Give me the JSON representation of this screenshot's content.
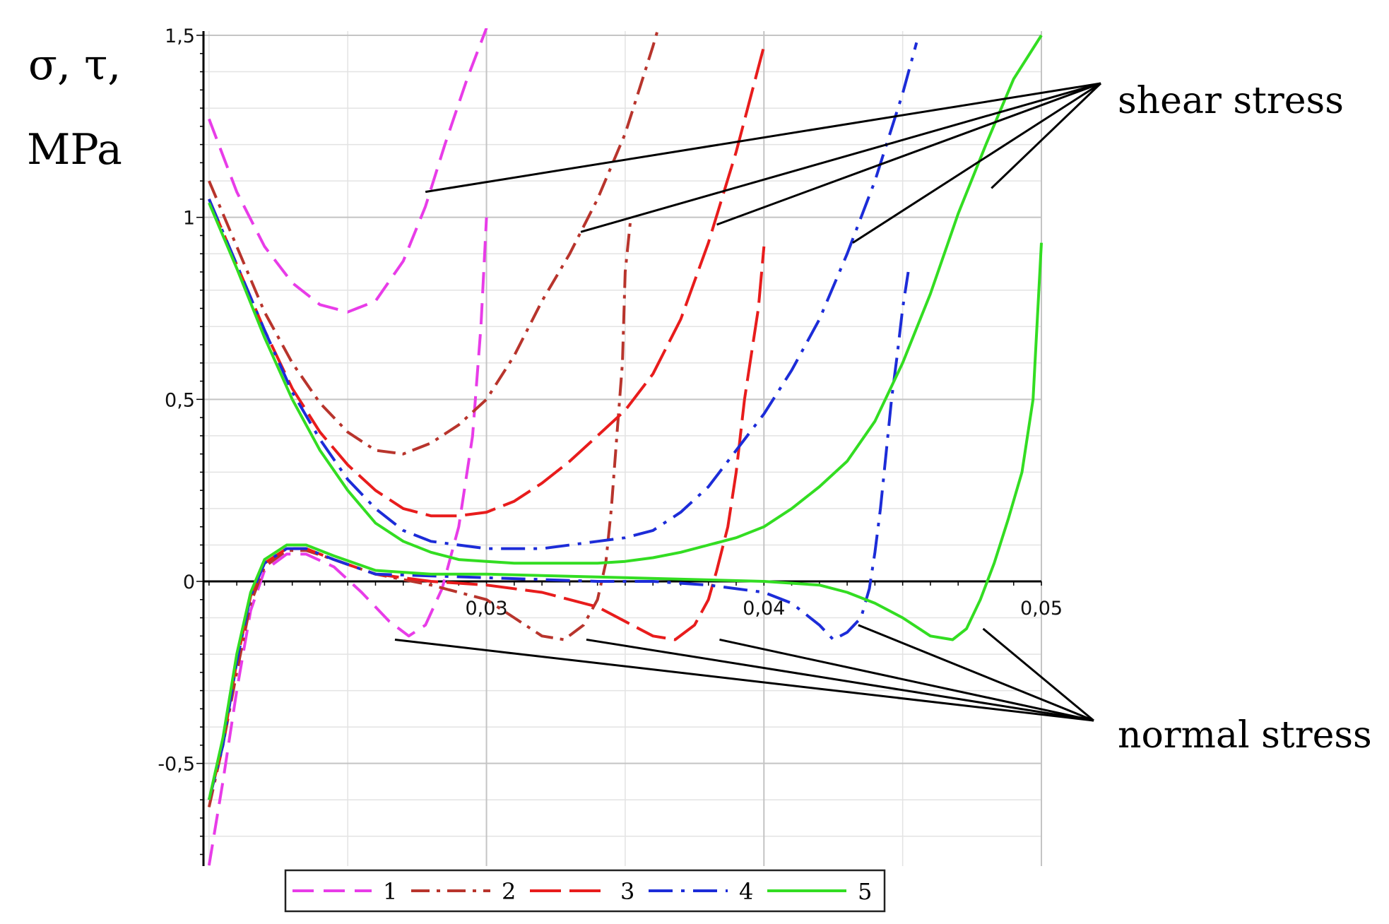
{
  "chart_data": {
    "type": "line",
    "title": "",
    "xlabel": "",
    "ylabel_line1": "σ,  τ,",
    "ylabel_line2": "MPa",
    "xlim": [
      0.0198,
      0.05
    ],
    "ylim": [
      -0.77,
      1.5
    ],
    "x_ticks": [
      0.03,
      0.04,
      0.05
    ],
    "x_tick_labels": [
      "0,03",
      "0,04",
      "0,05"
    ],
    "y_ticks": [
      -0.5,
      0,
      0.5,
      1,
      1.5
    ],
    "y_tick_labels": [
      "-0,5",
      "0",
      "0,5",
      "1",
      "1,5"
    ],
    "grid": true,
    "legend_position": "bottom",
    "annotations": {
      "shear": "shear stress",
      "normal": "normal stress"
    },
    "series": [
      {
        "name": "1",
        "color": "#e83ce8",
        "dash": "dashed",
        "shear": [
          [
            0.02,
            1.27
          ],
          [
            0.021,
            1.07
          ],
          [
            0.022,
            0.92
          ],
          [
            0.023,
            0.82
          ],
          [
            0.024,
            0.76
          ],
          [
            0.025,
            0.74
          ],
          [
            0.026,
            0.77
          ],
          [
            0.027,
            0.88
          ],
          [
            0.0278,
            1.03
          ],
          [
            0.0285,
            1.2
          ],
          [
            0.0293,
            1.38
          ],
          [
            0.03,
            1.52
          ]
        ],
        "normal": [
          [
            0.02,
            -0.78
          ],
          [
            0.0205,
            -0.55
          ],
          [
            0.021,
            -0.3
          ],
          [
            0.0215,
            -0.08
          ],
          [
            0.022,
            0.03
          ],
          [
            0.0228,
            0.075
          ],
          [
            0.0235,
            0.075
          ],
          [
            0.0245,
            0.04
          ],
          [
            0.0255,
            -0.03
          ],
          [
            0.0265,
            -0.11
          ],
          [
            0.0272,
            -0.15
          ],
          [
            0.0278,
            -0.12
          ],
          [
            0.0284,
            -0.02
          ],
          [
            0.029,
            0.15
          ],
          [
            0.0295,
            0.4
          ],
          [
            0.0298,
            0.7
          ],
          [
            0.03,
            1.0
          ]
        ]
      },
      {
        "name": "2",
        "color": "#b8342c",
        "dash": "dashdot",
        "shear": [
          [
            0.02,
            1.1
          ],
          [
            0.021,
            0.92
          ],
          [
            0.022,
            0.74
          ],
          [
            0.023,
            0.6
          ],
          [
            0.024,
            0.49
          ],
          [
            0.025,
            0.41
          ],
          [
            0.026,
            0.36
          ],
          [
            0.027,
            0.35
          ],
          [
            0.028,
            0.38
          ],
          [
            0.029,
            0.43
          ],
          [
            0.03,
            0.5
          ],
          [
            0.031,
            0.62
          ],
          [
            0.032,
            0.77
          ],
          [
            0.033,
            0.9
          ],
          [
            0.034,
            1.05
          ],
          [
            0.035,
            1.23
          ],
          [
            0.0355,
            1.35
          ],
          [
            0.036,
            1.47
          ],
          [
            0.0365,
            1.6
          ]
        ],
        "normal": [
          [
            0.02,
            -0.62
          ],
          [
            0.0205,
            -0.45
          ],
          [
            0.021,
            -0.25
          ],
          [
            0.0215,
            -0.06
          ],
          [
            0.022,
            0.04
          ],
          [
            0.0228,
            0.085
          ],
          [
            0.0235,
            0.085
          ],
          [
            0.0245,
            0.06
          ],
          [
            0.026,
            0.02
          ],
          [
            0.028,
            -0.01
          ],
          [
            0.03,
            -0.05
          ],
          [
            0.031,
            -0.1
          ],
          [
            0.032,
            -0.15
          ],
          [
            0.0328,
            -0.16
          ],
          [
            0.0335,
            -0.12
          ],
          [
            0.034,
            -0.05
          ],
          [
            0.0343,
            0.05
          ],
          [
            0.0345,
            0.2
          ],
          [
            0.0347,
            0.4
          ],
          [
            0.0349,
            0.6
          ],
          [
            0.035,
            0.85
          ],
          [
            0.0352,
            1.0
          ]
        ]
      },
      {
        "name": "3",
        "color": "#e81c1c",
        "dash": "longdash",
        "shear": [
          [
            0.02,
            1.05
          ],
          [
            0.021,
            0.87
          ],
          [
            0.022,
            0.69
          ],
          [
            0.023,
            0.53
          ],
          [
            0.024,
            0.41
          ],
          [
            0.025,
            0.32
          ],
          [
            0.026,
            0.25
          ],
          [
            0.027,
            0.2
          ],
          [
            0.028,
            0.18
          ],
          [
            0.029,
            0.18
          ],
          [
            0.03,
            0.19
          ],
          [
            0.031,
            0.22
          ],
          [
            0.032,
            0.27
          ],
          [
            0.033,
            0.33
          ],
          [
            0.034,
            0.4
          ],
          [
            0.035,
            0.47
          ],
          [
            0.036,
            0.57
          ],
          [
            0.037,
            0.72
          ],
          [
            0.038,
            0.93
          ],
          [
            0.039,
            1.18
          ],
          [
            0.04,
            1.47
          ]
        ],
        "normal": [
          [
            0.02,
            -0.6
          ],
          [
            0.0205,
            -0.45
          ],
          [
            0.021,
            -0.22
          ],
          [
            0.0215,
            -0.04
          ],
          [
            0.022,
            0.05
          ],
          [
            0.0228,
            0.09
          ],
          [
            0.0235,
            0.09
          ],
          [
            0.0245,
            0.06
          ],
          [
            0.026,
            0.02
          ],
          [
            0.028,
            0.0
          ],
          [
            0.03,
            -0.01
          ],
          [
            0.032,
            -0.03
          ],
          [
            0.034,
            -0.07
          ],
          [
            0.035,
            -0.11
          ],
          [
            0.036,
            -0.15
          ],
          [
            0.0368,
            -0.16
          ],
          [
            0.0375,
            -0.12
          ],
          [
            0.038,
            -0.05
          ],
          [
            0.0383,
            0.03
          ],
          [
            0.0387,
            0.15
          ],
          [
            0.039,
            0.3
          ],
          [
            0.0393,
            0.5
          ],
          [
            0.0395,
            0.6
          ],
          [
            0.0398,
            0.75
          ],
          [
            0.04,
            0.92
          ]
        ]
      },
      {
        "name": "4",
        "color": "#1c2cd8",
        "dash": "dashdot-long",
        "shear": [
          [
            0.02,
            1.05
          ],
          [
            0.021,
            0.87
          ],
          [
            0.022,
            0.69
          ],
          [
            0.023,
            0.52
          ],
          [
            0.024,
            0.39
          ],
          [
            0.025,
            0.28
          ],
          [
            0.026,
            0.2
          ],
          [
            0.027,
            0.14
          ],
          [
            0.028,
            0.11
          ],
          [
            0.029,
            0.1
          ],
          [
            0.03,
            0.09
          ],
          [
            0.031,
            0.09
          ],
          [
            0.032,
            0.09
          ],
          [
            0.033,
            0.1
          ],
          [
            0.034,
            0.11
          ],
          [
            0.035,
            0.12
          ],
          [
            0.036,
            0.14
          ],
          [
            0.037,
            0.19
          ],
          [
            0.038,
            0.26
          ],
          [
            0.039,
            0.36
          ],
          [
            0.04,
            0.46
          ],
          [
            0.041,
            0.58
          ],
          [
            0.042,
            0.72
          ],
          [
            0.043,
            0.9
          ],
          [
            0.044,
            1.1
          ],
          [
            0.045,
            1.34
          ],
          [
            0.0455,
            1.48
          ]
        ],
        "normal": [
          [
            0.02,
            -0.6
          ],
          [
            0.0205,
            -0.45
          ],
          [
            0.021,
            -0.22
          ],
          [
            0.0215,
            -0.04
          ],
          [
            0.022,
            0.05
          ],
          [
            0.0228,
            0.09
          ],
          [
            0.0235,
            0.09
          ],
          [
            0.0245,
            0.06
          ],
          [
            0.026,
            0.02
          ],
          [
            0.03,
            0.01
          ],
          [
            0.034,
            0.0
          ],
          [
            0.036,
            0.0
          ],
          [
            0.038,
            -0.01
          ],
          [
            0.04,
            -0.03
          ],
          [
            0.041,
            -0.06
          ],
          [
            0.042,
            -0.12
          ],
          [
            0.0425,
            -0.16
          ],
          [
            0.043,
            -0.14
          ],
          [
            0.0435,
            -0.1
          ],
          [
            0.0438,
            -0.02
          ],
          [
            0.044,
            0.08
          ],
          [
            0.0442,
            0.2
          ],
          [
            0.0444,
            0.35
          ],
          [
            0.0446,
            0.5
          ],
          [
            0.0448,
            0.62
          ],
          [
            0.045,
            0.75
          ],
          [
            0.0452,
            0.85
          ]
        ]
      },
      {
        "name": "5",
        "color": "#33dd22",
        "dash": "solid",
        "shear": [
          [
            0.02,
            1.04
          ],
          [
            0.021,
            0.86
          ],
          [
            0.022,
            0.67
          ],
          [
            0.023,
            0.5
          ],
          [
            0.024,
            0.36
          ],
          [
            0.025,
            0.25
          ],
          [
            0.026,
            0.16
          ],
          [
            0.027,
            0.11
          ],
          [
            0.028,
            0.08
          ],
          [
            0.029,
            0.06
          ],
          [
            0.03,
            0.055
          ],
          [
            0.031,
            0.05
          ],
          [
            0.032,
            0.05
          ],
          [
            0.033,
            0.05
          ],
          [
            0.034,
            0.05
          ],
          [
            0.035,
            0.055
          ],
          [
            0.036,
            0.065
          ],
          [
            0.037,
            0.08
          ],
          [
            0.038,
            0.1
          ],
          [
            0.039,
            0.12
          ],
          [
            0.04,
            0.15
          ],
          [
            0.041,
            0.2
          ],
          [
            0.042,
            0.26
          ],
          [
            0.043,
            0.33
          ],
          [
            0.044,
            0.44
          ],
          [
            0.045,
            0.6
          ],
          [
            0.046,
            0.79
          ],
          [
            0.047,
            1.01
          ],
          [
            0.048,
            1.2
          ],
          [
            0.049,
            1.38
          ],
          [
            0.05,
            1.5
          ]
        ],
        "normal": [
          [
            0.02,
            -0.6
          ],
          [
            0.0205,
            -0.43
          ],
          [
            0.021,
            -0.2
          ],
          [
            0.0215,
            -0.03
          ],
          [
            0.022,
            0.06
          ],
          [
            0.0228,
            0.1
          ],
          [
            0.0235,
            0.1
          ],
          [
            0.0245,
            0.07
          ],
          [
            0.026,
            0.03
          ],
          [
            0.028,
            0.02
          ],
          [
            0.03,
            0.02
          ],
          [
            0.035,
            0.01
          ],
          [
            0.04,
            0.0
          ],
          [
            0.042,
            -0.01
          ],
          [
            0.043,
            -0.03
          ],
          [
            0.044,
            -0.06
          ],
          [
            0.045,
            -0.1
          ],
          [
            0.046,
            -0.15
          ],
          [
            0.0468,
            -0.16
          ],
          [
            0.0473,
            -0.13
          ],
          [
            0.0478,
            -0.05
          ],
          [
            0.0483,
            0.05
          ],
          [
            0.0488,
            0.17
          ],
          [
            0.0493,
            0.3
          ],
          [
            0.0497,
            0.5
          ],
          [
            0.05,
            0.93
          ]
        ]
      }
    ]
  }
}
